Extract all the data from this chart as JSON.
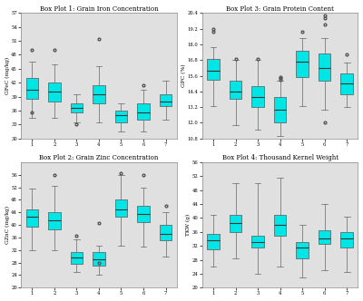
{
  "title1": "Box Plot 1: Grain Iron Concentration",
  "title2": "Box Plot 2: Grain Zinc Concentration",
  "title3": "Box Plot 3: Grain Protein Content",
  "title4": "Box Plot 4: Thousand Kernel Weight",
  "ylabel1": "GFeC (mg/kg)",
  "ylabel2": "GZnC (mg/kg)",
  "ylabel3": "GPC (%)",
  "ylabel4": "TKW (g)",
  "xlabels": [
    "1",
    "2",
    "3",
    "4",
    "5",
    "6",
    "7"
  ],
  "box_color": "#00E5E5",
  "fig_bg": "#FFFFFF",
  "ax_bg": "#E0E0E0",
  "plot1": {
    "ylim": [
      30,
      57
    ],
    "yticks": [
      30,
      33,
      36,
      39,
      42,
      45,
      48,
      51,
      54,
      57
    ],
    "data": [
      {
        "q1": 38.5,
        "median": 40.5,
        "q3": 43.0,
        "whislo": 34.5,
        "whishi": 46.5,
        "fliers": [
          35.5,
          49.0
        ]
      },
      {
        "q1": 38.0,
        "median": 40.0,
        "q3": 42.0,
        "whislo": 34.5,
        "whishi": 46.0,
        "fliers": [
          49.0
        ]
      },
      {
        "q1": 35.5,
        "median": 36.5,
        "q3": 37.5,
        "whislo": 33.5,
        "whishi": 39.5,
        "fliers": [
          33.0
        ]
      },
      {
        "q1": 37.5,
        "median": 39.5,
        "q3": 41.5,
        "whislo": 33.5,
        "whishi": 45.5,
        "fliers": [
          51.5
        ]
      },
      {
        "q1": 33.5,
        "median": 35.0,
        "q3": 36.0,
        "whislo": 31.5,
        "whishi": 37.5,
        "fliers": []
      },
      {
        "q1": 34.0,
        "median": 35.5,
        "q3": 37.5,
        "whislo": 31.5,
        "whishi": 40.5,
        "fliers": [
          41.5
        ]
      },
      {
        "q1": 37.0,
        "median": 38.0,
        "q3": 39.5,
        "whislo": 34.0,
        "whishi": 42.5,
        "fliers": []
      }
    ]
  },
  "plot2": {
    "ylim": [
      20,
      60
    ],
    "yticks": [
      20,
      24,
      28,
      32,
      36,
      40,
      44,
      48,
      52,
      56
    ],
    "data": [
      {
        "q1": 39.5,
        "median": 42.5,
        "q3": 45.0,
        "whislo": 32.0,
        "whishi": 51.5,
        "fliers": []
      },
      {
        "q1": 38.5,
        "median": 41.5,
        "q3": 44.0,
        "whislo": 32.0,
        "whishi": 52.5,
        "fliers": [
          56.0
        ]
      },
      {
        "q1": 27.5,
        "median": 29.5,
        "q3": 31.5,
        "whislo": 25.0,
        "whishi": 35.5,
        "fliers": [
          36.5
        ]
      },
      {
        "q1": 27.0,
        "median": 29.0,
        "q3": 31.5,
        "whislo": 24.0,
        "whishi": 33.5,
        "fliers": [
          40.5,
          28.0
        ]
      },
      {
        "q1": 42.5,
        "median": 45.0,
        "q3": 48.0,
        "whislo": 33.5,
        "whishi": 56.0,
        "fliers": [
          56.5
        ]
      },
      {
        "q1": 41.0,
        "median": 43.5,
        "q3": 46.0,
        "whislo": 33.0,
        "whishi": 52.0,
        "fliers": [
          56.0
        ]
      },
      {
        "q1": 35.0,
        "median": 37.0,
        "q3": 40.0,
        "whislo": 30.0,
        "whishi": 44.0,
        "fliers": [
          46.0
        ]
      }
    ]
  },
  "plot3": {
    "ylim": [
      10.8,
      20.4
    ],
    "yticks": [
      10.8,
      12.0,
      13.2,
      14.4,
      15.6,
      16.8,
      18.0,
      19.2,
      20.4
    ],
    "data": [
      {
        "q1": 15.3,
        "median": 16.0,
        "q3": 16.9,
        "whislo": 13.3,
        "whishi": 17.8,
        "fliers": [
          19.2,
          19.0
        ]
      },
      {
        "q1": 13.8,
        "median": 14.4,
        "q3": 15.2,
        "whislo": 11.8,
        "whishi": 16.8,
        "fliers": [
          16.9
        ]
      },
      {
        "q1": 13.2,
        "median": 14.0,
        "q3": 14.8,
        "whislo": 11.5,
        "whishi": 16.8,
        "fliers": [
          16.9
        ]
      },
      {
        "q1": 12.0,
        "median": 13.0,
        "q3": 14.0,
        "whislo": 11.0,
        "whishi": 15.2,
        "fliers": [
          15.5,
          15.4,
          15.3
        ]
      },
      {
        "q1": 15.5,
        "median": 16.7,
        "q3": 17.5,
        "whislo": 13.3,
        "whishi": 18.5,
        "fliers": [
          19.0
        ]
      },
      {
        "q1": 15.2,
        "median": 16.2,
        "q3": 17.3,
        "whislo": 13.0,
        "whishi": 18.5,
        "fliers": [
          12.0,
          19.5,
          20.0,
          20.2
        ]
      },
      {
        "q1": 14.2,
        "median": 15.0,
        "q3": 15.8,
        "whislo": 13.2,
        "whishi": 16.6,
        "fliers": [
          17.2
        ]
      }
    ]
  },
  "plot4": {
    "ylim": [
      20,
      56
    ],
    "yticks": [
      20,
      24,
      28,
      32,
      36,
      40,
      44,
      48,
      52,
      56
    ],
    "data": [
      {
        "q1": 31.0,
        "median": 33.5,
        "q3": 35.5,
        "whislo": 26.0,
        "whishi": 41.0,
        "fliers": []
      },
      {
        "q1": 36.0,
        "median": 38.5,
        "q3": 41.0,
        "whislo": 28.5,
        "whishi": 50.0,
        "fliers": []
      },
      {
        "q1": 31.5,
        "median": 33.0,
        "q3": 35.0,
        "whislo": 24.0,
        "whishi": 50.0,
        "fliers": []
      },
      {
        "q1": 35.0,
        "median": 38.0,
        "q3": 41.0,
        "whislo": 26.0,
        "whishi": 51.5,
        "fliers": []
      },
      {
        "q1": 28.5,
        "median": 31.5,
        "q3": 33.0,
        "whislo": 23.0,
        "whishi": 38.0,
        "fliers": []
      },
      {
        "q1": 32.5,
        "median": 34.0,
        "q3": 36.5,
        "whislo": 25.0,
        "whishi": 44.0,
        "fliers": []
      },
      {
        "q1": 31.5,
        "median": 34.0,
        "q3": 36.0,
        "whislo": 24.5,
        "whishi": 40.5,
        "fliers": []
      }
    ]
  }
}
